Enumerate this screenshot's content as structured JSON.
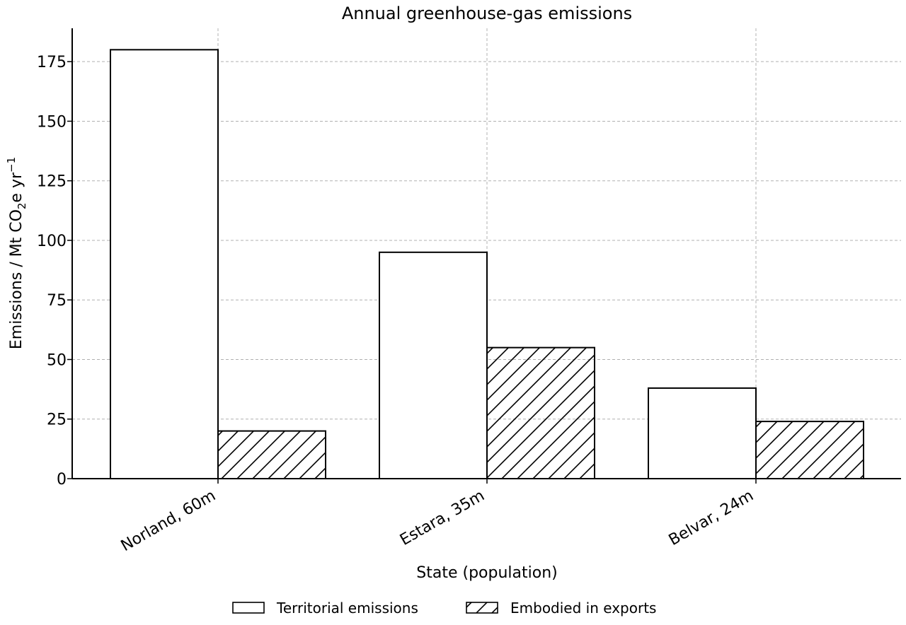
{
  "chart_data": {
    "type": "bar",
    "title": "Annual greenhouse-gas emissions",
    "xlabel": "State (population)",
    "ylabel": {
      "main": "Emissions / Mt CO",
      "sub": "2",
      "mid": "e yr",
      "sup": "−1"
    },
    "categories": [
      "Norland, 60m",
      "Estara, 35m",
      "Belvar, 24m"
    ],
    "series": [
      {
        "name": "Territorial emissions",
        "values": [
          180,
          95,
          38
        ],
        "pattern": "solid"
      },
      {
        "name": "Embodied in exports",
        "values": [
          20,
          55,
          24
        ],
        "pattern": "hatch"
      }
    ],
    "ylim": [
      0,
      189
    ],
    "yticks": [
      0,
      25,
      50,
      75,
      100,
      125,
      150,
      175
    ],
    "grid": true,
    "legend_position": "bottom-center",
    "colors": {
      "bar_fill": "#ffffff",
      "bar_edge": "#000000",
      "grid": "#b0b0b0"
    }
  }
}
